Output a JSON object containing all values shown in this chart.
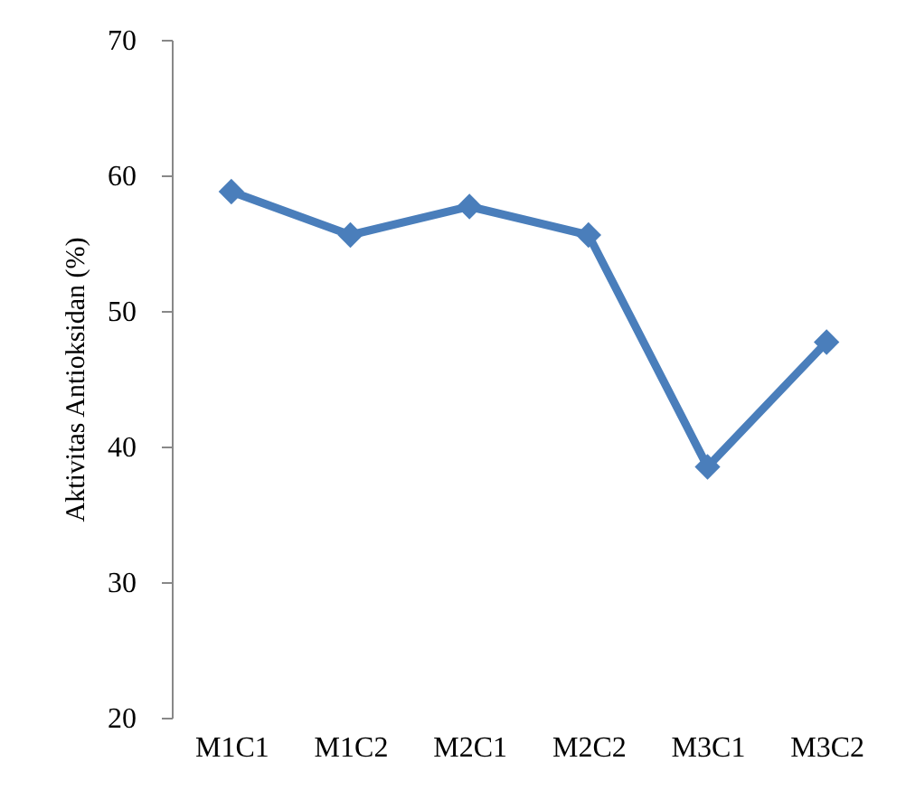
{
  "chart_data": {
    "type": "line",
    "ylabel": "Aktivitas Antioksidan (%)",
    "categories": [
      "M1C1",
      "M1C2",
      "M2C1",
      "M2C2",
      "M3C1",
      "M3C2"
    ],
    "series": [
      {
        "color": "#4a7ebb",
        "values": [
          58.8,
          55.6,
          57.7,
          55.6,
          38.5,
          47.7
        ]
      }
    ],
    "ylim": [
      20,
      70
    ],
    "yticks": [
      20,
      30,
      40,
      50,
      60,
      70
    ],
    "grid": false,
    "marker": "diamond",
    "line_style": "solid"
  }
}
